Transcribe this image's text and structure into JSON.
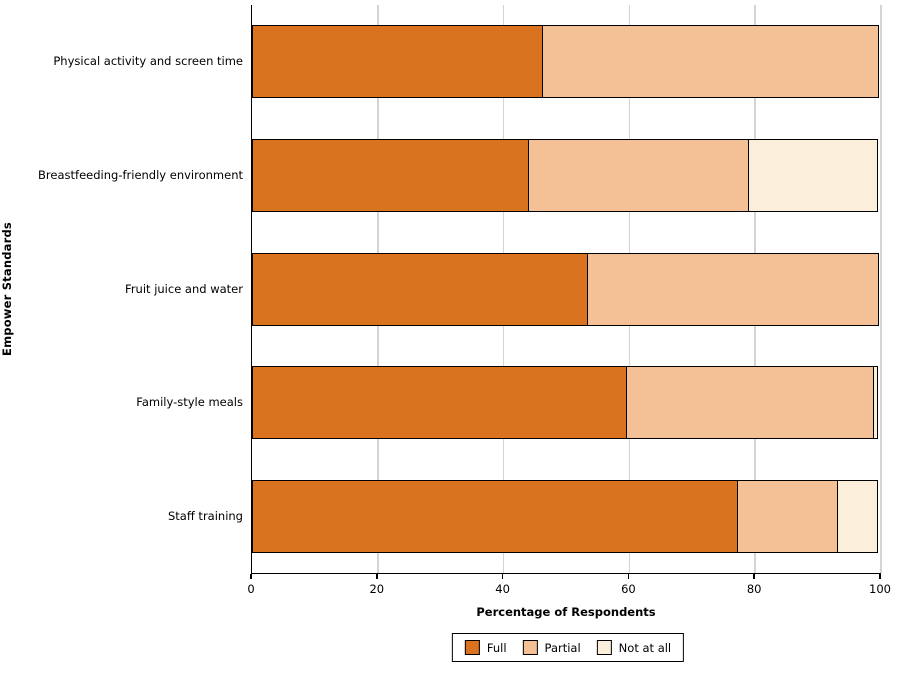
{
  "chart_data": {
    "type": "bar",
    "orientation": "horizontal",
    "stacked": true,
    "title": "",
    "xlabel": "Percentage of Respondents",
    "ylabel": "Empower Standards",
    "xlim": [
      0,
      100
    ],
    "xticks": [
      0,
      20,
      40,
      60,
      80,
      100
    ],
    "grid": "vertical gridlines on",
    "grid_color": "#d4d4d4",
    "legend_position": "bottom-center",
    "categories": [
      "Physical activity and screen time",
      "Breastfeeding-friendly environment",
      "Fruit juice and water",
      "Family-style meals",
      "Staff training"
    ],
    "series": [
      {
        "name": "Full",
        "color": "#D9731F",
        "values": [
          46.4,
          44.1,
          53.5,
          59.7,
          77.4
        ]
      },
      {
        "name": "Partial",
        "color": "#F4C095",
        "values": [
          53.6,
          35.3,
          46.5,
          39.5,
          16.1
        ]
      },
      {
        "name": "Not at all",
        "color": "#FBEEDB",
        "values": [
          0,
          20.6,
          0,
          0.8,
          6.5
        ]
      }
    ]
  },
  "colors": {
    "axis": "#000000",
    "bar_border": "#000000",
    "background": "#ffffff"
  }
}
